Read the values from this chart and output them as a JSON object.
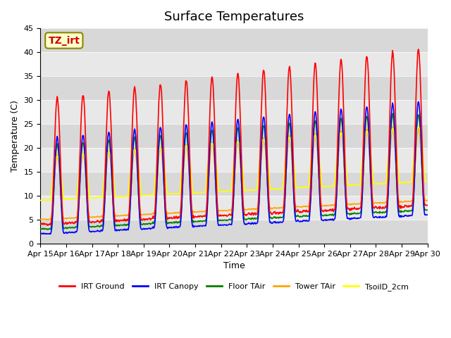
{
  "title": "Surface Temperatures",
  "xlabel": "Time",
  "ylabel": "Temperature (C)",
  "ylim": [
    0,
    45
  ],
  "x_tick_labels": [
    "Apr 15",
    "Apr 16",
    "Apr 17",
    "Apr 18",
    "Apr 19",
    "Apr 20",
    "Apr 21",
    "Apr 22",
    "Apr 23",
    "Apr 24",
    "Apr 25",
    "Apr 26",
    "Apr 27",
    "Apr 28",
    "Apr 29",
    "Apr 30"
  ],
  "legend_entries": [
    "IRT Ground",
    "IRT Canopy",
    "Floor TAir",
    "Tower TAir",
    "TsoilD_2cm"
  ],
  "line_colors": [
    "red",
    "blue",
    "green",
    "orange",
    "yellow"
  ],
  "stripe_colors": [
    "#d8d8d8",
    "#e8e8e8"
  ],
  "annotation": "TZ_irt",
  "annotation_color": "#cc0000",
  "annotation_bg": "#ffffcc",
  "title_fontsize": 13,
  "label_fontsize": 9,
  "tick_fontsize": 8
}
